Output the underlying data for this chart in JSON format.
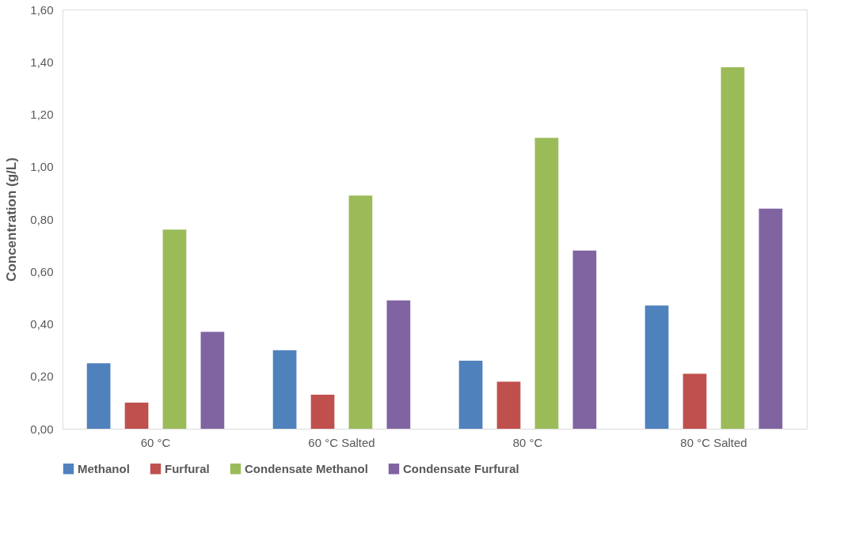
{
  "chart_data": {
    "type": "bar",
    "ylabel": "Concentration (g/L)",
    "categories": [
      "60 °C",
      "60 °C Salted",
      "80 °C",
      "80 °C Salted"
    ],
    "series": [
      {
        "name": "Methanol",
        "color": "#4f81bd",
        "values": [
          0.25,
          0.3,
          0.26,
          0.47
        ]
      },
      {
        "name": "Furfural",
        "color": "#c0504d",
        "values": [
          0.1,
          0.13,
          0.18,
          0.21
        ]
      },
      {
        "name": "Condensate Methanol",
        "color": "#9bbb59",
        "values": [
          0.76,
          0.89,
          1.11,
          1.38
        ]
      },
      {
        "name": "Condensate Furfural",
        "color": "#8064a2",
        "values": [
          0.37,
          0.49,
          0.68,
          0.84
        ]
      }
    ],
    "ylim": [
      0,
      1.6
    ],
    "yticks": [
      {
        "value": 0,
        "label": "0,00"
      },
      {
        "value": 0.2,
        "label": "0,20"
      },
      {
        "value": 0.4,
        "label": "0,40"
      },
      {
        "value": 0.6,
        "label": "0,60"
      },
      {
        "value": 0.8,
        "label": "0,80"
      },
      {
        "value": 1.0,
        "label": "1,00"
      },
      {
        "value": 1.2,
        "label": "1,20"
      },
      {
        "value": 1.4,
        "label": "1,40"
      },
      {
        "value": 1.6,
        "label": "1,60"
      }
    ],
    "grid": false,
    "legend": "bottom"
  }
}
